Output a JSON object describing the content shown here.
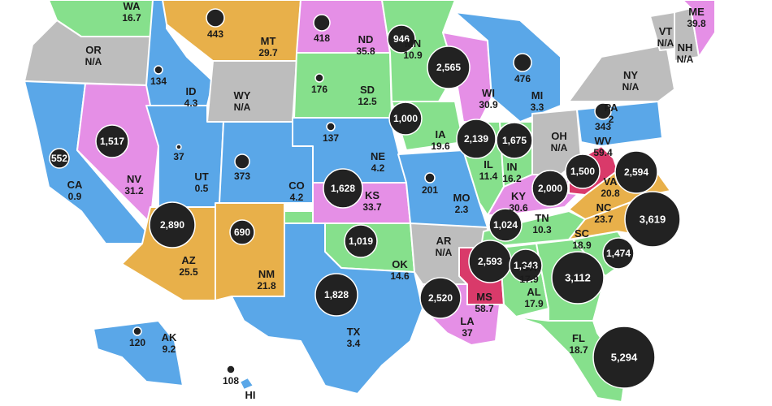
{
  "colors": {
    "na": "#bdbdbd",
    "blue": "#5aa7e8",
    "orange": "#e8b04a",
    "green": "#86e08c",
    "pink": "#e58fe6",
    "red": "#d93a6a",
    "bubble": "#222222"
  },
  "states": [
    {
      "abbr": "WA",
      "rate": "16.7",
      "color": "green"
    },
    {
      "abbr": "OR",
      "rate": "N/A",
      "color": "na"
    },
    {
      "abbr": "CA",
      "rate": "0.9",
      "color": "blue",
      "count": "552"
    },
    {
      "abbr": "ID",
      "rate": "4.3",
      "color": "blue",
      "count": "134"
    },
    {
      "abbr": "NV",
      "rate": "31.2",
      "color": "pink",
      "count": "1,517"
    },
    {
      "abbr": "MT",
      "rate": "29.7",
      "color": "orange",
      "count": "443"
    },
    {
      "abbr": "WY",
      "rate": "N/A",
      "color": "na"
    },
    {
      "abbr": "UT",
      "rate": "0.5",
      "color": "blue",
      "count": "37"
    },
    {
      "abbr": "CO",
      "rate": "4.2",
      "color": "blue",
      "count": "373"
    },
    {
      "abbr": "AZ",
      "rate": "25.5",
      "color": "orange",
      "count": "2,890"
    },
    {
      "abbr": "NM",
      "rate": "21.8",
      "color": "orange",
      "count": "690"
    },
    {
      "abbr": "ND",
      "rate": "35.8",
      "color": "pink",
      "count": "418"
    },
    {
      "abbr": "SD",
      "rate": "12.5",
      "color": "green",
      "count": "176"
    },
    {
      "abbr": "NE",
      "rate": "4.2",
      "color": "blue",
      "count": "137"
    },
    {
      "abbr": "KS",
      "rate": "33.7",
      "color": "pink",
      "count": "1,628"
    },
    {
      "abbr": "OK",
      "rate": "14.6",
      "color": "green",
      "count": "1,019"
    },
    {
      "abbr": "TX",
      "rate": "3.4",
      "color": "blue",
      "count": "1,828"
    },
    {
      "abbr": "MN",
      "rate": "10.9",
      "color": "green",
      "count": "946"
    },
    {
      "abbr": "IA",
      "rate": "19.6",
      "color": "green",
      "count": "1,000"
    },
    {
      "abbr": "MO",
      "rate": "2.3",
      "color": "blue",
      "count": "201"
    },
    {
      "abbr": "AR",
      "rate": "N/A",
      "color": "na"
    },
    {
      "abbr": "LA",
      "rate": "37",
      "color": "pink",
      "count": "2,520"
    },
    {
      "abbr": "WI",
      "rate": "30.9",
      "color": "pink",
      "count": "2,565"
    },
    {
      "abbr": "IL",
      "rate": "11.4",
      "color": "green",
      "count": "2,139"
    },
    {
      "abbr": "MI",
      "rate": "3.3",
      "color": "blue",
      "count": "476"
    },
    {
      "abbr": "IN",
      "rate": "16.2",
      "color": "green",
      "count": "1,675"
    },
    {
      "abbr": "OH",
      "rate": "N/A",
      "color": "na"
    },
    {
      "abbr": "KY",
      "rate": "30.6",
      "color": "pink",
      "count": "2,000"
    },
    {
      "abbr": "TN",
      "rate": "10.3",
      "color": "green",
      "count": "1,024"
    },
    {
      "abbr": "MS",
      "rate": "58.7",
      "color": "red",
      "count": "2,593"
    },
    {
      "abbr": "AL",
      "rate": "17.9",
      "color": "green",
      "count": "1,343"
    },
    {
      "abbr": "GA",
      "rate": "17.9",
      "color": "green",
      "count": "3,112"
    },
    {
      "abbr": "FL",
      "rate": "18.7",
      "color": "green",
      "count": "5,294"
    },
    {
      "abbr": "SC",
      "rate": "18.9",
      "color": "green",
      "count": "1,474"
    },
    {
      "abbr": "NC",
      "rate": "23.7",
      "color": "orange",
      "count": "3,619"
    },
    {
      "abbr": "VA",
      "rate": "20.8",
      "color": "orange",
      "count": "2,594"
    },
    {
      "abbr": "WV",
      "rate": "59.4",
      "color": "red",
      "count": "1,500"
    },
    {
      "abbr": "PA",
      "rate": "2",
      "color": "blue",
      "count": "343"
    },
    {
      "abbr": "NY",
      "rate": "N/A",
      "color": "na"
    },
    {
      "abbr": "VT",
      "rate": "N/A",
      "color": "na"
    },
    {
      "abbr": "NH",
      "rate": "N/A",
      "color": "na"
    },
    {
      "abbr": "ME",
      "rate": "39.8",
      "color": "pink"
    },
    {
      "abbr": "AK",
      "rate": "9.2",
      "color": "blue",
      "count": "120"
    },
    {
      "abbr": "HI",
      "rate": "",
      "color": "blue",
      "count": "108"
    }
  ]
}
